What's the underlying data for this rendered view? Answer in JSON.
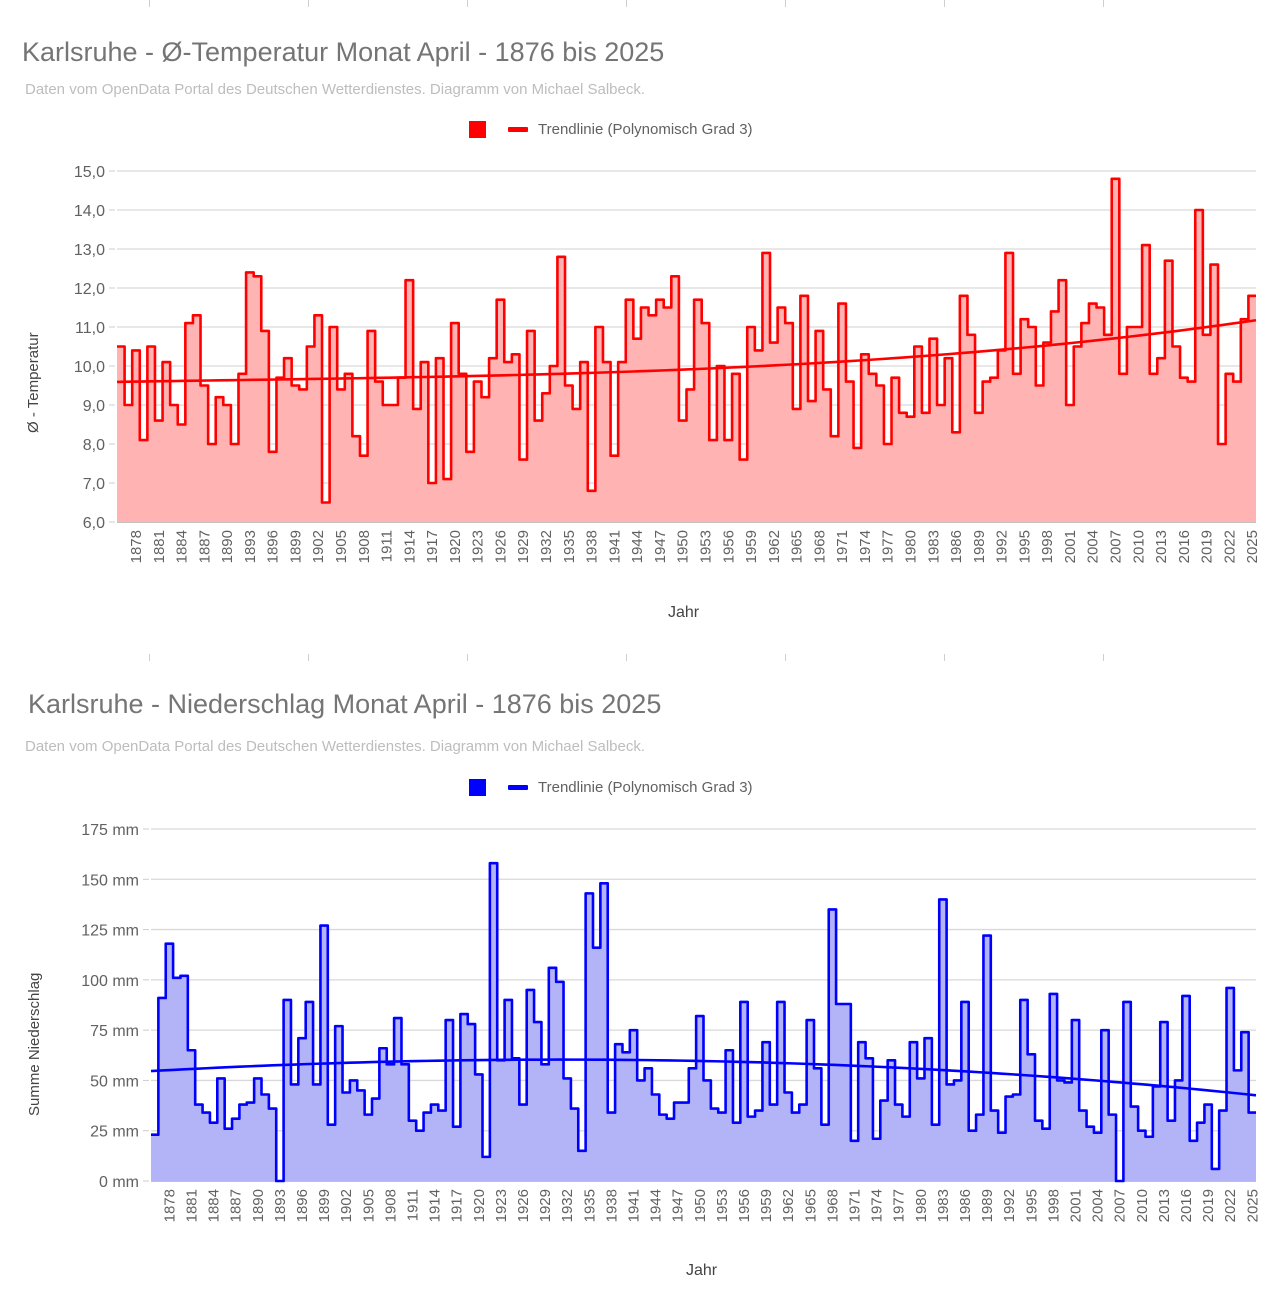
{
  "charts": [
    {
      "title": "Karlsruhe - Ø-Temperatur Monat April - 1876 bis 2025",
      "subtitle": "Daten vom OpenData Portal des Deutschen Wetterdienstes. Diagramm von Michael Salbeck.",
      "legend": {
        "series_label": "",
        "trend_label": "Trendlinie (Polynomisch Grad 3)"
      },
      "xlabel": "Jahr",
      "ylabel": "Ø - Temperatur",
      "colors": {
        "line": "#ff0000",
        "fill": "#ffb3b3"
      }
    },
    {
      "title": "Karlsruhe - Niederschlag Monat April - 1876 bis 2025",
      "subtitle": "Daten vom OpenData Portal des Deutschen Wetterdienstes. Diagramm von Michael Salbeck.",
      "legend": {
        "series_label": "",
        "trend_label": "Trendlinie (Polynomisch Grad 3)"
      },
      "xlabel": "Jahr",
      "ylabel": "Summe Niederschlag",
      "colors": {
        "line": "#0000ff",
        "fill": "#b3b3f8"
      }
    }
  ],
  "chart_data": [
    {
      "type": "area",
      "title": "Karlsruhe - Ø-Temperatur Monat April - 1876 bis 2025",
      "xlabel": "Jahr",
      "ylabel": "Ø - Temperatur",
      "x_start": 1876,
      "x_end": 2025,
      "ylim": [
        6.0,
        15.0
      ],
      "yticks": [
        "6,0",
        "7,0",
        "8,0",
        "9,0",
        "10,0",
        "11,0",
        "12,0",
        "13,0",
        "14,0",
        "15,0"
      ],
      "xticks": [
        "1878",
        "1881",
        "1884",
        "1887",
        "1890",
        "1893",
        "1896",
        "1899",
        "1902",
        "1905",
        "1908",
        "1911",
        "1914",
        "1917",
        "1920",
        "1923",
        "1926",
        "1929",
        "1932",
        "1935",
        "1938",
        "1941",
        "1944",
        "1947",
        "1950",
        "1953",
        "1956",
        "1959",
        "1962",
        "1965",
        "1968",
        "1971",
        "1974",
        "1977",
        "1980",
        "1983",
        "1986",
        "1989",
        "1992",
        "1995",
        "1998",
        "2001",
        "2004",
        "2007",
        "2010",
        "2013",
        "2016",
        "2019",
        "2022",
        "2025"
      ],
      "grid": true,
      "legend_position": "top",
      "series": [
        {
          "name": "Ø-Temperatur",
          "values": [
            10.5,
            9.0,
            10.4,
            8.1,
            10.5,
            8.6,
            10.1,
            9.0,
            8.5,
            11.1,
            11.3,
            9.5,
            8.0,
            9.2,
            9.0,
            8.0,
            9.8,
            12.4,
            12.3,
            10.9,
            7.8,
            9.7,
            10.2,
            9.5,
            9.4,
            10.5,
            11.3,
            6.5,
            11.0,
            9.4,
            9.8,
            8.2,
            7.7,
            10.9,
            9.6,
            9.0,
            9.0,
            9.7,
            12.2,
            8.9,
            10.1,
            7.0,
            10.2,
            7.1,
            11.1,
            9.8,
            7.8,
            9.6,
            9.2,
            10.2,
            11.7,
            10.1,
            10.3,
            7.6,
            10.9,
            8.6,
            9.3,
            10.0,
            12.8,
            9.5,
            8.9,
            10.1,
            6.8,
            11.0,
            10.1,
            7.7,
            10.1,
            11.7,
            10.7,
            11.5,
            11.3,
            11.7,
            11.5,
            12.3,
            8.6,
            9.4,
            11.7,
            11.1,
            8.1,
            10.0,
            8.1,
            9.8,
            7.6,
            11.0,
            10.4,
            12.9,
            10.6,
            11.5,
            11.1,
            8.9,
            11.8,
            9.1,
            10.9,
            9.4,
            8.2,
            11.6,
            9.6,
            7.9,
            10.3,
            9.8,
            9.5,
            8.0,
            9.7,
            8.8,
            8.7,
            10.5,
            8.8,
            10.7,
            9.0,
            10.2,
            8.3,
            11.8,
            10.8,
            8.8,
            9.6,
            9.7,
            10.4,
            12.9,
            9.8,
            11.2,
            11.0,
            9.5,
            10.6,
            11.4,
            12.2,
            9.0,
            10.5,
            11.1,
            11.6,
            11.5,
            10.8,
            14.8,
            9.8,
            11.0,
            11.0,
            13.1,
            9.8,
            10.2,
            12.7,
            10.5,
            9.7,
            9.6,
            14.0,
            10.8,
            12.6,
            8.0,
            9.8,
            9.6,
            11.2,
            11.8
          ]
        },
        {
          "name": "Trendlinie (Polynomisch Grad 3)",
          "type": "polynomial",
          "degree": 3,
          "start_value": 9.6,
          "end_value": 11.2
        }
      ]
    },
    {
      "type": "area",
      "title": "Karlsruhe - Niederschlag Monat April - 1876 bis 2025",
      "xlabel": "Jahr",
      "ylabel": "Summe Niederschlag",
      "x_start": 1876,
      "x_end": 2025,
      "ylim": [
        0,
        175
      ],
      "yticks": [
        "0 mm",
        "25 mm",
        "50 mm",
        "75 mm",
        "100 mm",
        "125 mm",
        "150 mm",
        "175 mm"
      ],
      "xticks": [
        "1878",
        "1881",
        "1884",
        "1887",
        "1890",
        "1893",
        "1896",
        "1899",
        "1902",
        "1905",
        "1908",
        "1911",
        "1914",
        "1917",
        "1920",
        "1923",
        "1926",
        "1929",
        "1932",
        "1935",
        "1938",
        "1941",
        "1944",
        "1947",
        "1950",
        "1953",
        "1956",
        "1959",
        "1962",
        "1965",
        "1968",
        "1971",
        "1974",
        "1977",
        "1980",
        "1983",
        "1986",
        "1989",
        "1992",
        "1995",
        "1998",
        "2001",
        "2004",
        "2007",
        "2010",
        "2013",
        "2016",
        "2019",
        "2022",
        "2025"
      ],
      "grid": true,
      "legend_position": "top",
      "series": [
        {
          "name": "Niederschlag",
          "values": [
            23,
            91,
            118,
            101,
            102,
            65,
            38,
            34,
            29,
            51,
            26,
            31,
            38,
            39,
            51,
            43,
            36,
            0,
            90,
            48,
            71,
            89,
            48,
            127,
            28,
            77,
            44,
            50,
            45,
            33,
            41,
            66,
            58,
            81,
            58,
            30,
            25,
            34,
            38,
            35,
            80,
            27,
            83,
            78,
            53,
            12,
            158,
            60,
            90,
            61,
            38,
            95,
            79,
            58,
            106,
            99,
            51,
            36,
            15,
            143,
            116,
            148,
            34,
            68,
            64,
            75,
            50,
            56,
            43,
            33,
            31,
            39,
            39,
            56,
            82,
            50,
            36,
            34,
            65,
            29,
            89,
            32,
            35,
            69,
            38,
            89,
            44,
            34,
            38,
            80,
            56,
            28,
            135,
            88,
            88,
            20,
            69,
            61,
            21,
            40,
            60,
            38,
            32,
            69,
            51,
            71,
            28,
            140,
            48,
            50,
            89,
            25,
            33,
            122,
            35,
            24,
            42,
            43,
            90,
            63,
            30,
            26,
            93,
            50,
            49,
            80,
            35,
            27,
            24,
            75,
            33,
            0,
            89,
            37,
            25,
            22,
            47,
            79,
            30,
            50,
            92,
            20,
            29,
            38,
            6,
            35,
            96,
            55,
            74,
            34
          ]
        },
        {
          "name": "Trendlinie (Polynomisch Grad 3)",
          "type": "polynomial",
          "degree": 3,
          "start_value": 55,
          "end_value": 43
        }
      ]
    }
  ]
}
